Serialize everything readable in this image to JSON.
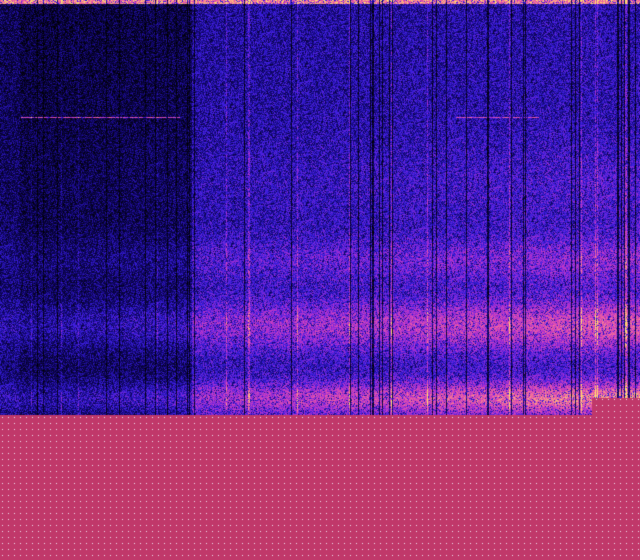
{
  "image": {
    "type": "spectrogram",
    "colormap": [
      "#000000",
      "#10066a",
      "#3a1ee0",
      "#b030d0",
      "#f060a0",
      "#ffe070"
    ],
    "fill_color": "#c0386a",
    "fill_dot_color": "#f0e0f0"
  }
}
